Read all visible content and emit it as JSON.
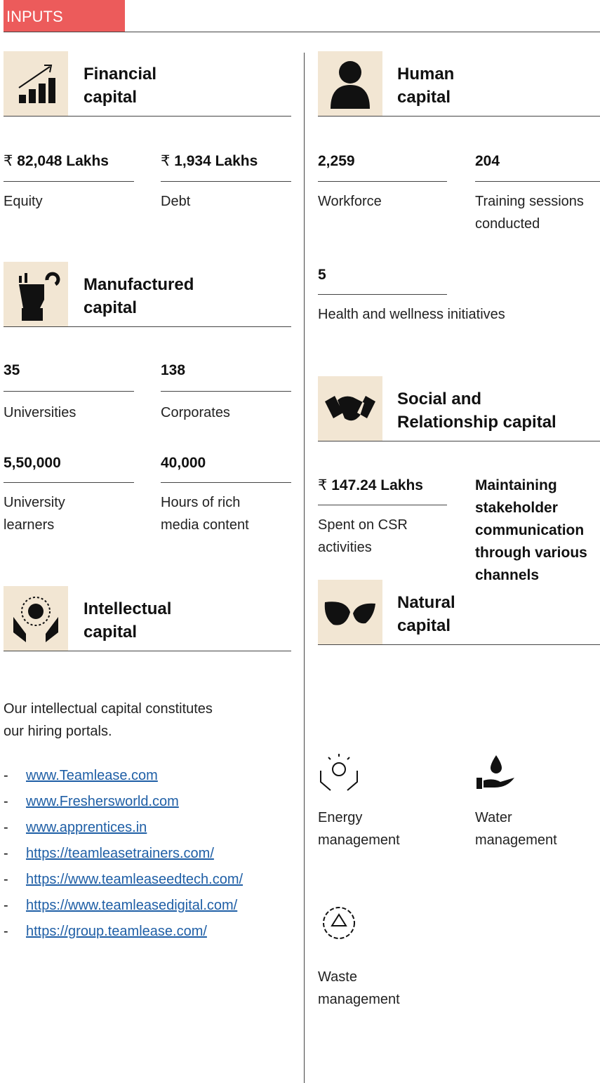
{
  "header": {
    "title": "INPUTS"
  },
  "financial": {
    "title": "Financial capital",
    "metrics": [
      {
        "currency": "₹",
        "value": "82,048 Lakhs",
        "label": "Equity"
      },
      {
        "currency": "₹",
        "value": "1,934 Lakhs",
        "label": "Debt"
      }
    ]
  },
  "manufactured": {
    "title": "Manufactured capital",
    "metrics": [
      {
        "value": "35",
        "label": "Universities"
      },
      {
        "value": "138",
        "label": "Corporates"
      },
      {
        "value": "5,50,000",
        "label": "University learners"
      },
      {
        "value": "40,000",
        "label": "Hours of rich media content"
      }
    ]
  },
  "intellectual": {
    "title": "Intellectual capital",
    "text": "Our intellectual capital constitutes our hiring portals.",
    "links": [
      "www.Teamlease.com",
      "www.Freshersworld.com",
      "www.apprentices.in",
      "https://teamleasetrainers.com/",
      "https://www.teamleaseedtech.com/",
      "https://www.teamleasedigital.com/",
      "https://group.teamlease.com/"
    ]
  },
  "human": {
    "title": "Human capital",
    "metrics": [
      {
        "value": "2,259",
        "label": "Workforce"
      },
      {
        "value": "204",
        "label": "Training sessions conducted"
      },
      {
        "value": "5",
        "label": "Health and wellness initiatives"
      }
    ]
  },
  "social": {
    "title": "Social and Relationship capital",
    "metrics": [
      {
        "currency": "₹",
        "value": "147.24 Lakhs",
        "label": "Spent on CSR activities"
      }
    ],
    "note": "Maintaining stakeholder communication through various channels"
  },
  "natural": {
    "title": "Natural capital",
    "items": [
      "Energy management",
      "Water management",
      "Waste management"
    ]
  }
}
